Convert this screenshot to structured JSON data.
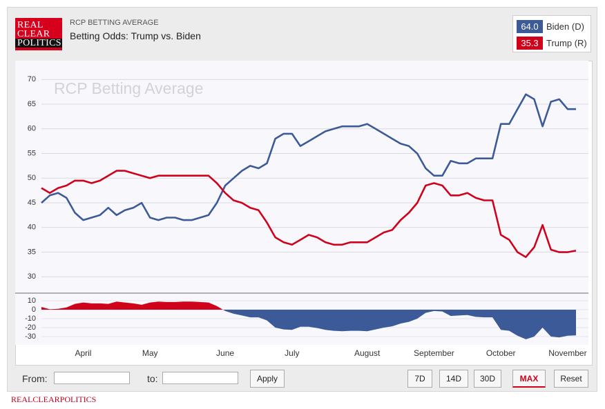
{
  "header": {
    "logo": [
      "REAL",
      "CLEAR",
      "POLITICS"
    ],
    "kicker": "RCP BETTING AVERAGE",
    "title": "Betting Odds: Trump vs. Biden"
  },
  "chart_data": [
    {
      "type": "line",
      "watermark": "RCP Betting Average",
      "categories": [
        null,
        null,
        null,
        null,
        null,
        "April",
        null,
        null,
        null,
        null,
        null,
        null,
        null,
        "May",
        null,
        null,
        null,
        null,
        null,
        null,
        null,
        null,
        "June",
        null,
        null,
        null,
        null,
        null,
        null,
        null,
        "July",
        null,
        null,
        null,
        null,
        null,
        null,
        null,
        null,
        "August",
        null,
        null,
        null,
        null,
        null,
        null,
        null,
        "September",
        null,
        null,
        null,
        null,
        null,
        null,
        null,
        "October",
        null,
        null,
        null,
        null,
        null,
        null,
        null,
        "November",
        null
      ],
      "series": [
        {
          "name": "Biden (D)",
          "color": "#3d5a98",
          "legend_value": "64.0",
          "values": [
            45,
            46.5,
            47,
            46,
            43,
            41.5,
            42,
            42.5,
            44,
            42.5,
            43.5,
            44,
            45,
            42,
            41.5,
            42,
            42,
            41.5,
            41.5,
            42,
            42.5,
            45,
            48.5,
            50,
            51.5,
            52.5,
            52,
            53,
            58,
            59,
            59,
            56.5,
            57.5,
            58.5,
            59.5,
            60,
            60.5,
            60.5,
            60.5,
            61,
            60,
            59,
            58,
            57,
            56.5,
            55,
            52,
            50.5,
            50.5,
            53.5,
            53,
            53,
            54,
            54,
            54,
            61,
            61,
            64,
            67,
            66,
            60.5,
            65.5,
            66,
            64,
            64.0
          ]
        },
        {
          "name": "Trump (R)",
          "color": "#d0021b",
          "legend_value": "35.3",
          "values": [
            48,
            47,
            48,
            48.5,
            49.5,
            49.5,
            49,
            49.5,
            50.5,
            51.5,
            51.5,
            51,
            50.5,
            50,
            50.5,
            50.5,
            50.5,
            50.5,
            50.5,
            50.5,
            50.5,
            49,
            47,
            45.5,
            45,
            44,
            43.5,
            41,
            38,
            37,
            36.5,
            37.5,
            38.5,
            38,
            37,
            36.5,
            36.5,
            37,
            37,
            37,
            38,
            39,
            39.5,
            41.5,
            43,
            45,
            48.5,
            49,
            48.5,
            46.5,
            46.5,
            47,
            46,
            45.5,
            45.5,
            38.5,
            37.5,
            35,
            34,
            36,
            40.5,
            35.5,
            35,
            35,
            35.3
          ]
        }
      ],
      "ylim": [
        28,
        72
      ],
      "yticks": [
        30,
        35,
        40,
        45,
        50,
        55,
        60,
        65,
        70
      ],
      "grid": true
    },
    {
      "type": "area",
      "values": [
        3,
        0.5,
        1,
        2.5,
        6.5,
        8,
        7,
        7,
        6.5,
        9,
        8,
        7,
        5.5,
        8,
        9,
        8.5,
        8.5,
        9,
        9,
        8.5,
        8,
        4,
        -1.5,
        -4.5,
        -6.5,
        -8.5,
        -8.5,
        -12,
        -20,
        -22,
        -22.5,
        -19,
        -19,
        -20.5,
        -22.5,
        -23.5,
        -24,
        -23.5,
        -23.5,
        -24,
        -22,
        -20,
        -18.5,
        -15.5,
        -13.5,
        -10,
        -3.5,
        -1.5,
        -2,
        -7,
        -6.5,
        -6,
        -8,
        -8.5,
        -8.5,
        -22.5,
        -23.5,
        -29,
        -33,
        -30,
        -20,
        -30,
        -31,
        -29,
        -28.7
      ],
      "positive_color": "#d0021b",
      "negative_color": "#3d5a98",
      "ylim": [
        -35,
        14
      ],
      "yticks": [
        -30,
        -20,
        -10,
        0,
        10
      ],
      "grid": true
    }
  ],
  "controls": {
    "from_label": "From:",
    "to_label": "to:",
    "apply": "Apply",
    "ranges": [
      "7D",
      "14D",
      "30D",
      "MAX",
      "Reset"
    ],
    "active_range": "MAX"
  },
  "footer": "REALCLEARPOLITICS"
}
